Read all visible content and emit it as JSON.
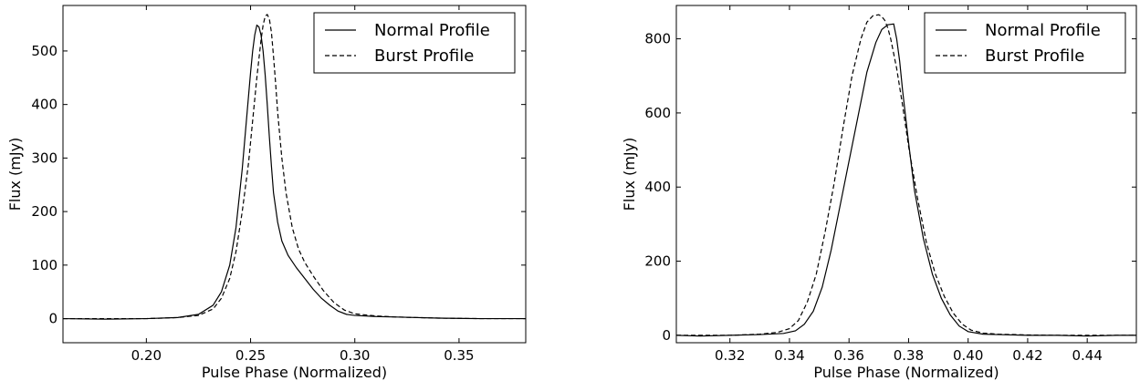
{
  "chart_data": [
    {
      "type": "line",
      "xlabel": "Pulse Phase (Normalized)",
      "ylabel": "Flux (mJy)",
      "xlim": [
        0.16,
        0.382
      ],
      "ylim": [
        -45,
        585
      ],
      "xticks": [
        0.2,
        0.25,
        0.3,
        0.35
      ],
      "xtick_labels": [
        "0.20",
        "0.25",
        "0.30",
        "0.35"
      ],
      "yticks": [
        0,
        100,
        200,
        300,
        400,
        500
      ],
      "ytick_labels": [
        "0",
        "100",
        "200",
        "300",
        "400",
        "500"
      ],
      "grid": false,
      "legend": "top-right",
      "series": [
        {
          "name": "Normal Profile",
          "style": "solid",
          "x": [
            0.16,
            0.18,
            0.2,
            0.215,
            0.225,
            0.232,
            0.236,
            0.24,
            0.243,
            0.246,
            0.248,
            0.25,
            0.251,
            0.252,
            0.253,
            0.254,
            0.255,
            0.256,
            0.257,
            0.258,
            0.259,
            0.26,
            0.261,
            0.263,
            0.265,
            0.268,
            0.272,
            0.276,
            0.28,
            0.284,
            0.288,
            0.292,
            0.296,
            0.3,
            0.31,
            0.32,
            0.34,
            0.36,
            0.382
          ],
          "y": [
            0,
            -1,
            0,
            2,
            8,
            25,
            50,
            100,
            170,
            280,
            370,
            460,
            500,
            530,
            548,
            545,
            530,
            500,
            455,
            400,
            340,
            285,
            235,
            180,
            145,
            118,
            95,
            75,
            55,
            38,
            25,
            14,
            8,
            6,
            4,
            3,
            1,
            0,
            0
          ]
        },
        {
          "name": "Burst Profile",
          "style": "dashed",
          "x": [
            0.16,
            0.18,
            0.2,
            0.215,
            0.225,
            0.232,
            0.236,
            0.24,
            0.243,
            0.246,
            0.249,
            0.251,
            0.253,
            0.255,
            0.256,
            0.257,
            0.258,
            0.259,
            0.26,
            0.261,
            0.262,
            0.263,
            0.265,
            0.267,
            0.27,
            0.273,
            0.276,
            0.28,
            0.285,
            0.29,
            0.295,
            0.3,
            0.31,
            0.32,
            0.34,
            0.36,
            0.382
          ],
          "y": [
            0,
            0,
            0,
            2,
            6,
            18,
            38,
            75,
            125,
            200,
            290,
            370,
            450,
            520,
            548,
            565,
            568,
            560,
            535,
            490,
            440,
            385,
            300,
            235,
            170,
            130,
            105,
            80,
            52,
            30,
            16,
            9,
            5,
            3,
            1,
            0,
            0
          ]
        }
      ]
    },
    {
      "type": "line",
      "xlabel": "Pulse Phase (Normalized)",
      "ylabel": "Flux (mJy)",
      "xlim": [
        0.302,
        0.4565
      ],
      "ylim": [
        -20,
        890
      ],
      "xticks": [
        0.32,
        0.34,
        0.36,
        0.38,
        0.4,
        0.42,
        0.44
      ],
      "xtick_labels": [
        "0.32",
        "0.34",
        "0.36",
        "0.38",
        "0.40",
        "0.42",
        "0.44"
      ],
      "yticks": [
        0,
        200,
        400,
        600,
        800
      ],
      "ytick_labels": [
        "0",
        "200",
        "400",
        "600",
        "800"
      ],
      "grid": false,
      "legend": "top-right",
      "series": [
        {
          "name": "Normal Profile",
          "style": "solid",
          "x": [
            0.302,
            0.31,
            0.32,
            0.33,
            0.338,
            0.342,
            0.345,
            0.348,
            0.351,
            0.354,
            0.357,
            0.36,
            0.363,
            0.366,
            0.369,
            0.371,
            0.373,
            0.375,
            0.376,
            0.377,
            0.378,
            0.38,
            0.382,
            0.385,
            0.388,
            0.391,
            0.394,
            0.397,
            0.4,
            0.405,
            0.41,
            0.42,
            0.43,
            0.44,
            0.45,
            0.4565
          ],
          "y": [
            0,
            -2,
            0,
            2,
            5,
            12,
            30,
            65,
            130,
            230,
            350,
            470,
            590,
            710,
            790,
            825,
            838,
            840,
            800,
            740,
            660,
            520,
            390,
            260,
            165,
            100,
            55,
            25,
            10,
            3,
            2,
            0,
            0,
            -2,
            0,
            0
          ]
        },
        {
          "name": "Burst Profile",
          "style": "dashed",
          "x": [
            0.302,
            0.31,
            0.32,
            0.33,
            0.336,
            0.34,
            0.343,
            0.346,
            0.349,
            0.352,
            0.355,
            0.358,
            0.361,
            0.364,
            0.366,
            0.368,
            0.37,
            0.371,
            0.372,
            0.373,
            0.374,
            0.376,
            0.378,
            0.38,
            0.383,
            0.386,
            0.389,
            0.392,
            0.395,
            0.398,
            0.401,
            0.405,
            0.41,
            0.42,
            0.43,
            0.44,
            0.4565
          ],
          "y": [
            0,
            0,
            0,
            3,
            8,
            18,
            40,
            90,
            165,
            280,
            410,
            560,
            700,
            800,
            845,
            862,
            865,
            860,
            850,
            830,
            800,
            720,
            620,
            510,
            370,
            250,
            165,
            105,
            60,
            30,
            14,
            6,
            3,
            1,
            0,
            0,
            0
          ]
        }
      ]
    }
  ]
}
